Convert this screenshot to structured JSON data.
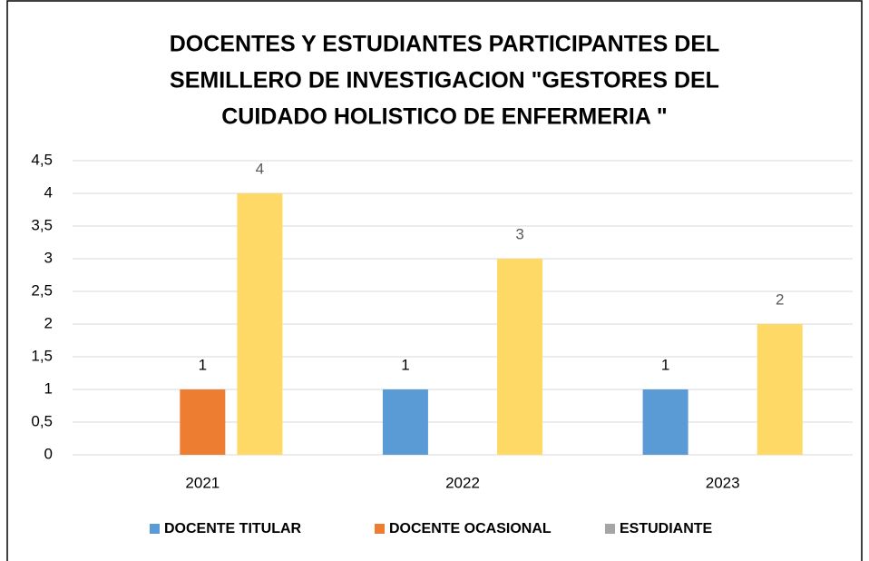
{
  "chart_data": {
    "type": "bar",
    "title": [
      "DOCENTES Y ESTUDIANTES PARTICIPANTES DEL",
      "SEMILLERO DE INVESTIGACION \"GESTORES DEL",
      "CUIDADO HOLISTICO DE ENFERMERIA \""
    ],
    "categories": [
      "2021",
      "2022",
      "2023"
    ],
    "series": [
      {
        "name": "DOCENTE TITULAR",
        "color": "#5b9bd5",
        "values": [
          null,
          1,
          1
        ]
      },
      {
        "name": "DOCENTE OCASIONAL",
        "color": "#ed7d31",
        "values": [
          1,
          null,
          null
        ]
      },
      {
        "name": "ESTUDIANTE",
        "color": "#ffd966",
        "legend_color": "#a5a5a5",
        "values": [
          4,
          3,
          2
        ]
      }
    ],
    "ylim": [
      0,
      4.5
    ],
    "yticks": [
      0,
      {
        "value": 0.5,
        "label": "0,5"
      },
      1,
      {
        "value": 1.5,
        "label": "1,5"
      },
      2,
      {
        "value": 2.5,
        "label": "2,5"
      },
      3,
      {
        "value": 3.5,
        "label": "3,5"
      },
      4,
      {
        "value": 4.5,
        "label": "4,5"
      }
    ],
    "grid": true,
    "legend": "bottom"
  }
}
